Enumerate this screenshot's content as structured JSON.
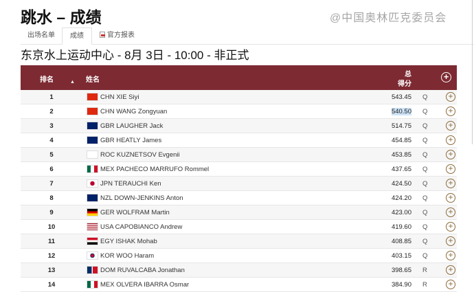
{
  "title": "跳水 – 成绩",
  "tabs": [
    {
      "label": "出场名单"
    },
    {
      "label": "成绩"
    },
    {
      "label": "官方报表"
    }
  ],
  "subtitle": "东京水上运动中心 - 8月 3日 - 10:00 - 非正式",
  "table": {
    "headers": {
      "rank": "排名",
      "name": "姓名",
      "total_line1": "总",
      "total_line2": "得分"
    },
    "header_color": "#7d2a32",
    "rows": [
      {
        "rank": "1",
        "noc": "CHN",
        "name": "CHN XIE Siyi",
        "score": "543.45",
        "qual": "Q"
      },
      {
        "rank": "2",
        "noc": "CHN",
        "name": "CHN WANG Zongyuan",
        "score": "540.50",
        "qual": "Q"
      },
      {
        "rank": "3",
        "noc": "GBR",
        "name": "GBR LAUGHER Jack",
        "score": "514.75",
        "qual": "Q"
      },
      {
        "rank": "4",
        "noc": "GBR",
        "name": "GBR HEATLY James",
        "score": "454.85",
        "qual": "Q"
      },
      {
        "rank": "5",
        "noc": "ROC",
        "name": "ROC KUZNETSOV Evgenii",
        "score": "453.85",
        "qual": "Q"
      },
      {
        "rank": "6",
        "noc": "MEX",
        "name": "MEX PACHECO MARRUFO Rommel",
        "score": "437.65",
        "qual": "Q"
      },
      {
        "rank": "7",
        "noc": "JPN",
        "name": "JPN TERAUCHI Ken",
        "score": "424.50",
        "qual": "Q"
      },
      {
        "rank": "8",
        "noc": "NZL",
        "name": "NZL DOWN-JENKINS Anton",
        "score": "424.20",
        "qual": "Q"
      },
      {
        "rank": "9",
        "noc": "GER",
        "name": "GER WOLFRAM Martin",
        "score": "423.00",
        "qual": "Q"
      },
      {
        "rank": "10",
        "noc": "USA",
        "name": "USA CAPOBIANCO Andrew",
        "score": "419.60",
        "qual": "Q"
      },
      {
        "rank": "11",
        "noc": "EGY",
        "name": "EGY ISHAK Mohab",
        "score": "408.85",
        "qual": "Q"
      },
      {
        "rank": "12",
        "noc": "KOR",
        "name": "KOR WOO Haram",
        "score": "403.15",
        "qual": "Q"
      },
      {
        "rank": "13",
        "noc": "DOM",
        "name": "DOM RUVALCABA Jonathan",
        "score": "398.65",
        "qual": "R"
      },
      {
        "rank": "14",
        "noc": "MEX",
        "name": "MEX OLVERA IBARRA Osmar",
        "score": "384.90",
        "qual": "R"
      }
    ]
  },
  "watermark": "@中国奥林匹克委员会"
}
